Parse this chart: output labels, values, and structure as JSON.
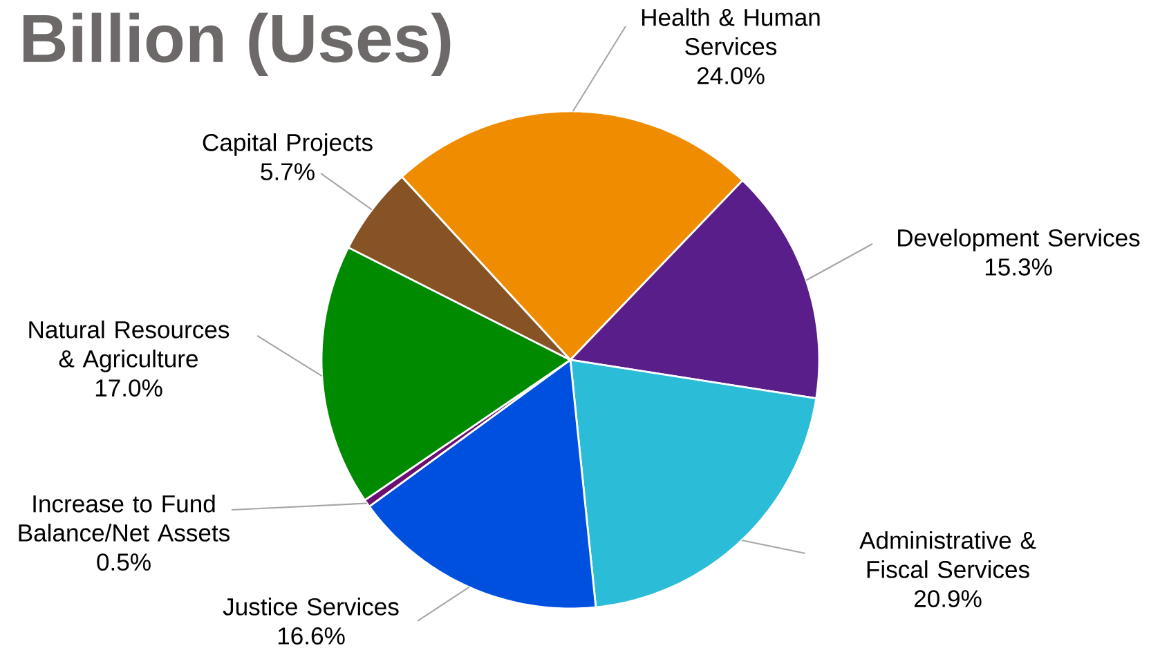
{
  "chart_data": {
    "type": "pie",
    "title": "Billion (Uses)",
    "categories": [
      "Health & Human Services",
      "Development Services",
      "Administrative & Fiscal Services",
      "Justice Services",
      "Increase to Fund Balance/Net Assets",
      "Natural Resources & Agriculture",
      "Capital Projects"
    ],
    "values": [
      24.0,
      15.3,
      20.9,
      16.6,
      0.5,
      17.0,
      5.7
    ],
    "value_labels": [
      "24.0%",
      "15.3%",
      "20.9%",
      "16.6%",
      "0.5%",
      "17.0%",
      "5.7%"
    ],
    "colors": [
      "#f08c00",
      "#5a1e8a",
      "#2bbcd8",
      "#0050e0",
      "#6a1070",
      "#008a00",
      "#875224"
    ]
  }
}
